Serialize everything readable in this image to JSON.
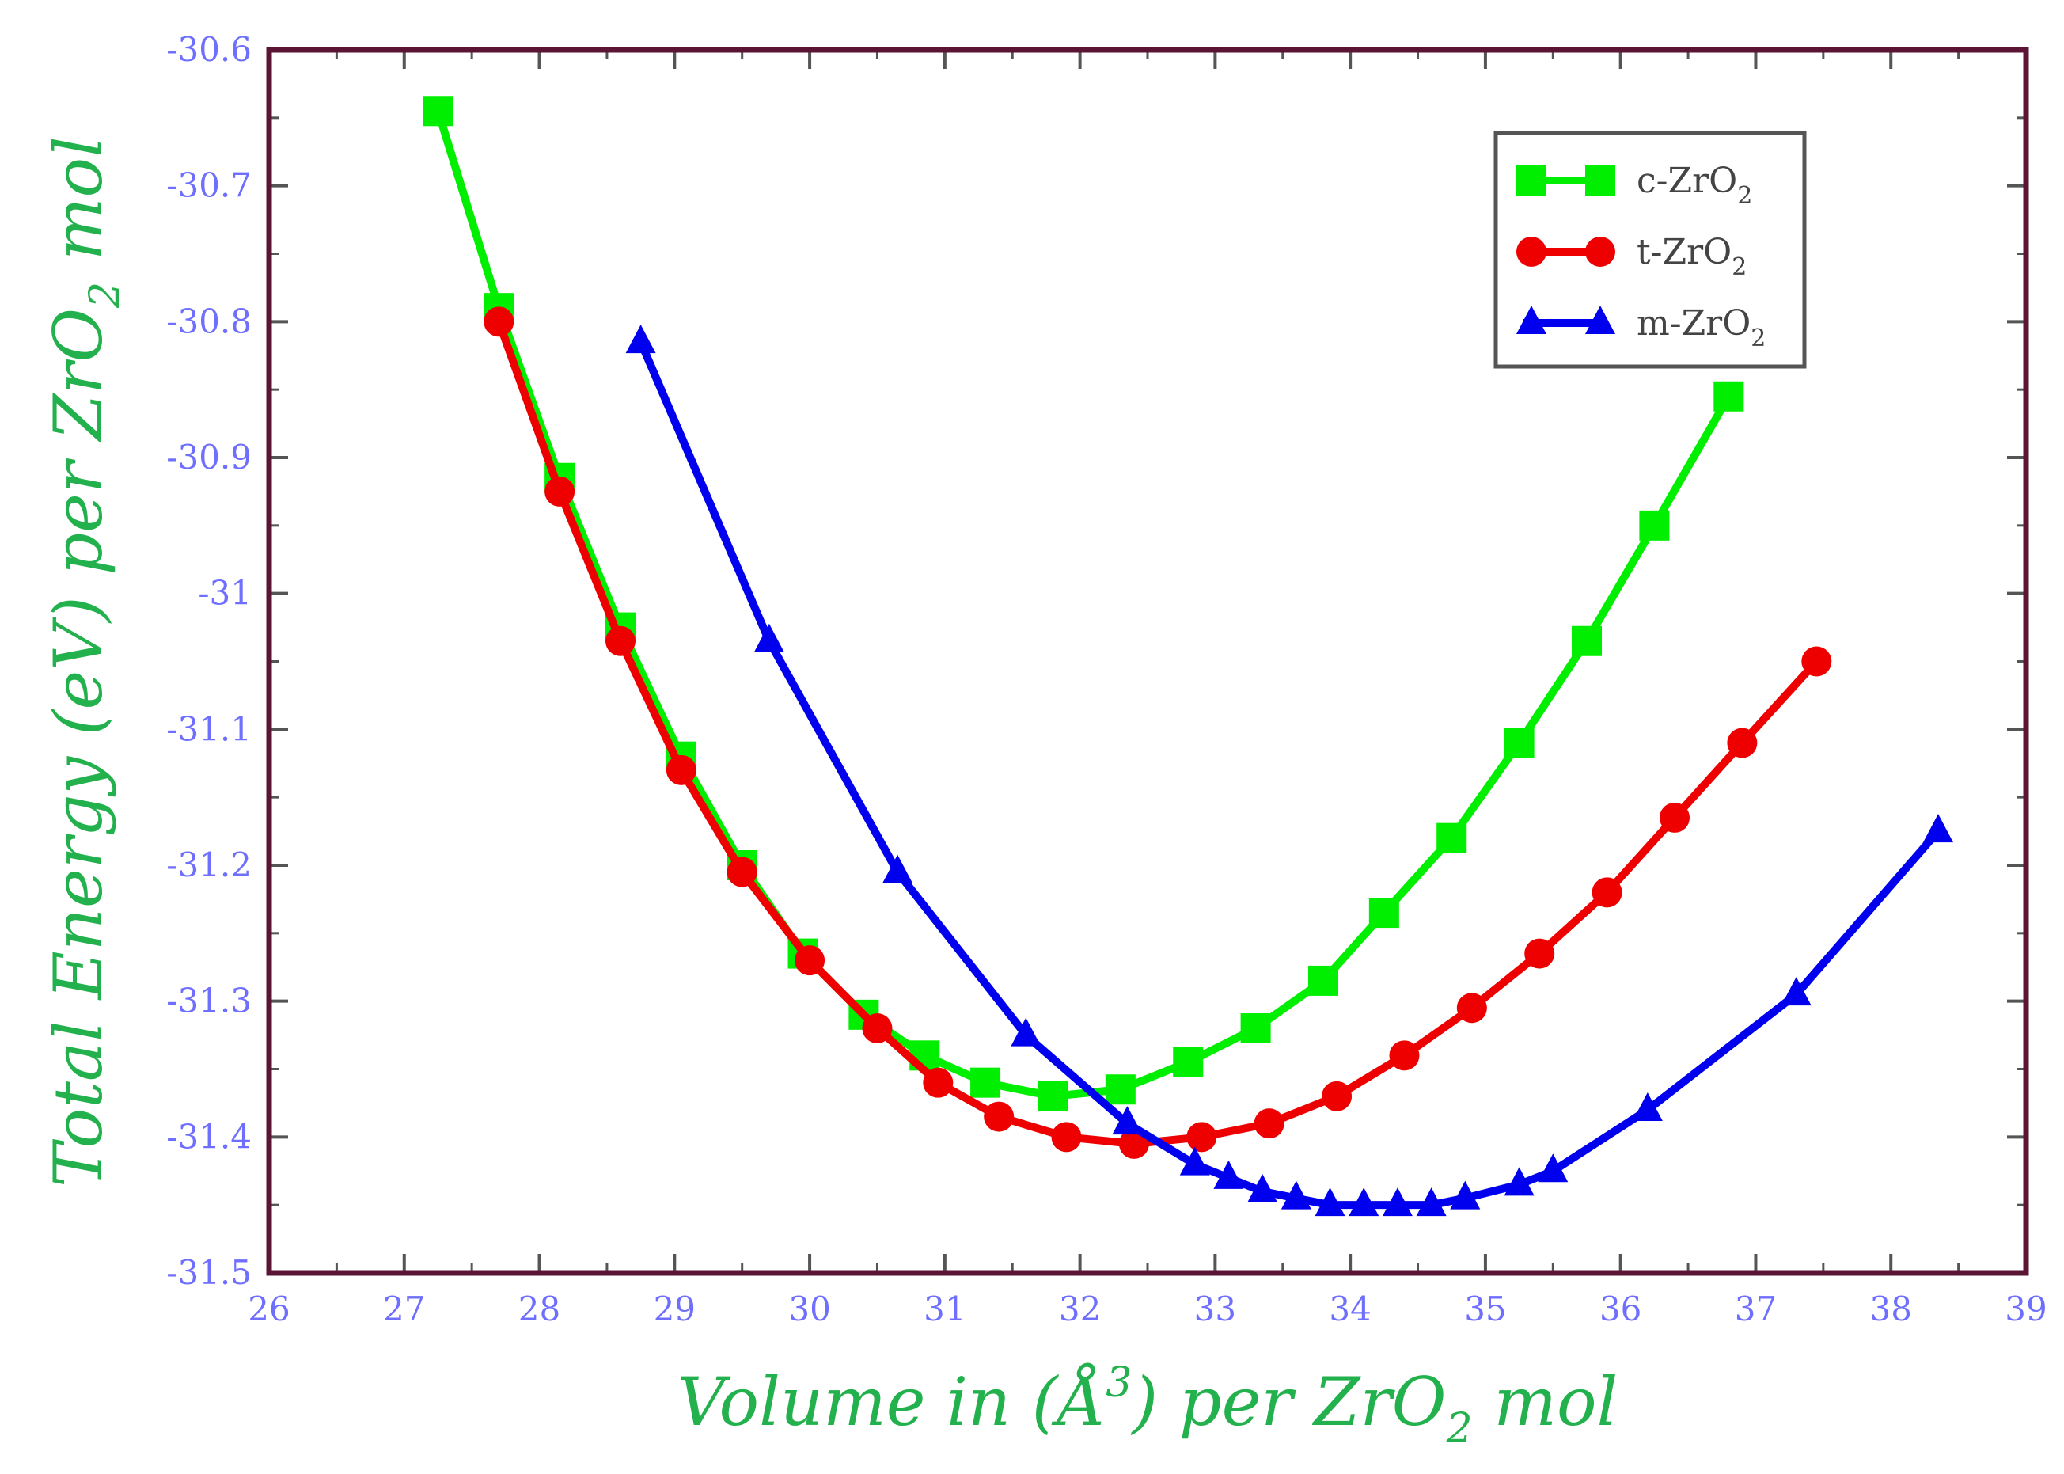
{
  "chart_data": {
    "type": "line",
    "xlabel": {
      "main": "Volume in (Å",
      "sup": "3",
      "mid": ") per ZrO",
      "sub": "2",
      "tail": " mol"
    },
    "ylabel": {
      "main": "Total Energy (eV) per ZrO",
      "sub": "2",
      "tail": " mol"
    },
    "xlim": [
      26,
      39
    ],
    "ylim": [
      -31.5,
      -30.6
    ],
    "xticks": [
      "26",
      "27",
      "28",
      "29",
      "30",
      "31",
      "32",
      "33",
      "34",
      "35",
      "36",
      "37",
      "38",
      "39"
    ],
    "yticks": [
      "-30.6",
      "-30.7",
      "-30.8",
      "-30.9",
      "-31",
      "-31.1",
      "-31.2",
      "-31.3",
      "-31.4",
      "-31.5"
    ],
    "legend_position": "top-right",
    "series": [
      {
        "name": "c-ZrO",
        "sub": "2",
        "color": "#00ee00",
        "marker": "square",
        "x": [
          27.25,
          27.7,
          28.15,
          28.6,
          29.05,
          29.5,
          29.95,
          30.4,
          30.85,
          31.3,
          31.8,
          32.3,
          32.8,
          33.3,
          33.8,
          34.25,
          34.75,
          35.25,
          35.75,
          36.25,
          36.8
        ],
        "y": [
          -30.645,
          -30.79,
          -30.915,
          -31.025,
          -31.12,
          -31.2,
          -31.265,
          -31.31,
          -31.34,
          -31.36,
          -31.37,
          -31.365,
          -31.345,
          -31.32,
          -31.285,
          -31.235,
          -31.18,
          -31.11,
          -31.035,
          -30.95,
          -30.855
        ]
      },
      {
        "name": "t-ZrO",
        "sub": "2",
        "color": "#ee0000",
        "marker": "circle",
        "x": [
          27.7,
          28.15,
          28.6,
          29.05,
          29.5,
          30.0,
          30.5,
          30.95,
          31.4,
          31.9,
          32.4,
          32.9,
          33.4,
          33.9,
          34.4,
          34.9,
          35.4,
          35.9,
          36.4,
          36.9,
          37.45
        ],
        "y": [
          -30.8,
          -30.925,
          -31.035,
          -31.13,
          -31.205,
          -31.27,
          -31.32,
          -31.36,
          -31.385,
          -31.4,
          -31.405,
          -31.4,
          -31.39,
          -31.37,
          -31.34,
          -31.305,
          -31.265,
          -31.22,
          -31.165,
          -31.11,
          -31.05
        ]
      },
      {
        "name": "m-ZrO",
        "sub": "2",
        "color": "#0000ee",
        "marker": "triangle",
        "x": [
          28.75,
          29.7,
          30.65,
          31.6,
          32.35,
          32.85,
          33.1,
          33.35,
          33.6,
          33.85,
          34.1,
          34.35,
          34.6,
          34.85,
          35.25,
          35.5,
          36.2,
          37.3,
          38.35
        ],
        "y": [
          -30.815,
          -31.035,
          -31.205,
          -31.325,
          -31.39,
          -31.42,
          -31.43,
          -31.44,
          -31.445,
          -31.45,
          -31.45,
          -31.45,
          -31.45,
          -31.445,
          -31.435,
          -31.425,
          -31.38,
          -31.295,
          -31.175
        ]
      }
    ]
  }
}
